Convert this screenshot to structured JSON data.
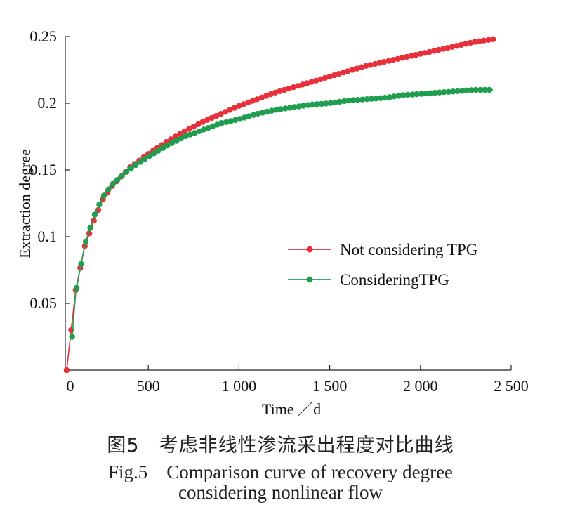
{
  "chart_data": {
    "type": "line",
    "xlabel": "Time ／d",
    "ylabel": "Extraction degree",
    "xlim": [
      0,
      2500
    ],
    "ylim": [
      0,
      0.25
    ],
    "xticks": [
      0,
      500,
      1000,
      1500,
      2000,
      2500
    ],
    "xtick_labels": [
      "0",
      "500",
      "1 000",
      "1 500",
      "2 000",
      "2 500"
    ],
    "yticks": [
      0.05,
      0.1,
      0.15,
      0.2,
      0.25
    ],
    "ytick_labels": [
      "0.05",
      "0.1",
      "0.15",
      "0.2",
      "0.25"
    ],
    "grid": false,
    "legend_position": "center-right",
    "series": [
      {
        "name": "Not considering TPG",
        "color": "#e8303a",
        "x": [
          50,
          100,
          150,
          200,
          250,
          300,
          400,
          500,
          600,
          700,
          800,
          900,
          1000,
          1100,
          1200,
          1300,
          1400,
          1500,
          1600,
          1700,
          1800,
          1900,
          2000,
          2100,
          2200,
          2300,
          2400
        ],
        "y": [
          0,
          0.06,
          0.093,
          0.112,
          0.128,
          0.138,
          0.152,
          0.162,
          0.171,
          0.179,
          0.186,
          0.192,
          0.198,
          0.203,
          0.208,
          0.212,
          0.216,
          0.22,
          0.224,
          0.228,
          0.231,
          0.234,
          0.237,
          0.24,
          0.243,
          0.246,
          0.248
        ]
      },
      {
        "name": "ConsideringTPG",
        "color": "#1f9e4f",
        "x": [
          80,
          100,
          150,
          200,
          250,
          300,
          400,
          500,
          600,
          700,
          800,
          900,
          1000,
          1100,
          1200,
          1300,
          1400,
          1500,
          1600,
          1700,
          1800,
          1900,
          2000,
          2100,
          2200,
          2300,
          2400
        ],
        "y": [
          0.025,
          0.058,
          0.094,
          0.115,
          0.13,
          0.139,
          0.151,
          0.16,
          0.168,
          0.175,
          0.18,
          0.185,
          0.188,
          0.192,
          0.195,
          0.197,
          0.199,
          0.2,
          0.202,
          0.203,
          0.204,
          0.206,
          0.207,
          0.208,
          0.209,
          0.21,
          0.21
        ]
      }
    ]
  },
  "caption": {
    "cn": "图5　考虑非线性渗流采出程度对比曲线",
    "en_line1": "Fig.5　Comparison curve of recovery degree",
    "en_line2": "considering nonlinear flow"
  }
}
